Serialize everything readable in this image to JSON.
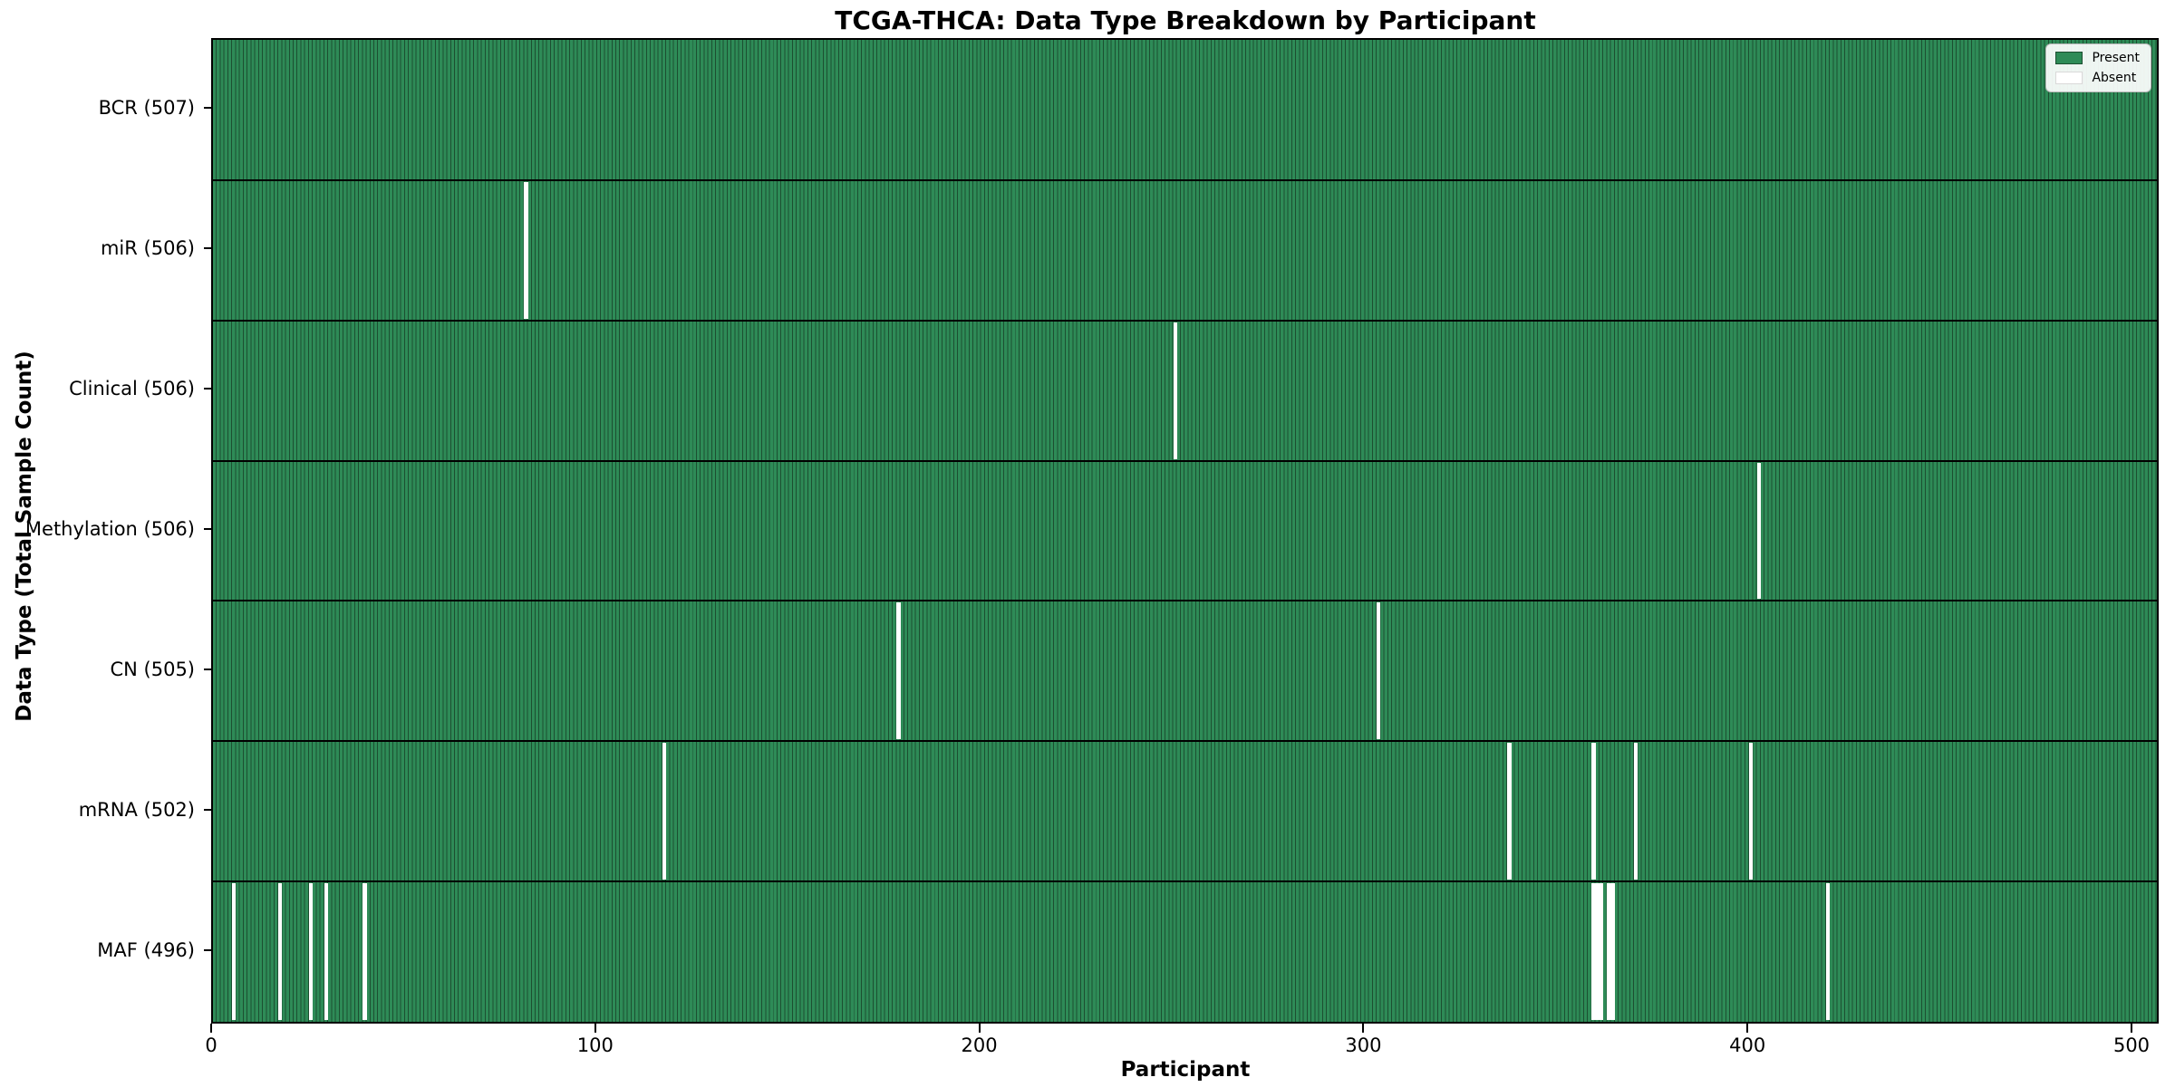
{
  "chart_data": {
    "type": "heatmap",
    "title": "TCGA-THCA: Data Type Breakdown by Participant",
    "xlabel": "Participant",
    "ylabel": "Data Type (Total Sample Count)",
    "n_participants": 507,
    "xlim": [
      0,
      507
    ],
    "x_ticks": [
      0,
      100,
      200,
      300,
      400,
      500
    ],
    "grid": false,
    "legend_position": "upper right",
    "colors": {
      "present_fill": "#2e8b57",
      "bar_edge": "#1c4f31",
      "absent_fill": "#ffffff"
    },
    "legend": [
      {
        "label": "Present",
        "color": "#2e8b57"
      },
      {
        "label": "Absent",
        "color": "#ffffff"
      }
    ],
    "rows": [
      {
        "label": "BCR (507)",
        "data_type": "BCR",
        "total": 507,
        "absent_participants": []
      },
      {
        "label": "miR (506)",
        "data_type": "miR",
        "total": 506,
        "absent_participants": [
          81
        ]
      },
      {
        "label": "Clinical (506)",
        "data_type": "Clinical",
        "total": 506,
        "absent_participants": [
          250
        ]
      },
      {
        "label": "Methylation (506)",
        "data_type": "Methylation",
        "total": 506,
        "absent_participants": [
          402
        ]
      },
      {
        "label": "CN (505)",
        "data_type": "CN",
        "total": 505,
        "absent_participants": [
          178,
          303
        ]
      },
      {
        "label": "mRNA (502)",
        "data_type": "mRNA",
        "total": 502,
        "absent_participants": [
          117,
          337,
          359,
          370,
          400
        ]
      },
      {
        "label": "MAF (496)",
        "data_type": "MAF",
        "total": 496,
        "absent_participants": [
          5,
          17,
          25,
          29,
          39,
          359,
          360,
          361,
          363,
          364,
          420
        ]
      }
    ]
  }
}
